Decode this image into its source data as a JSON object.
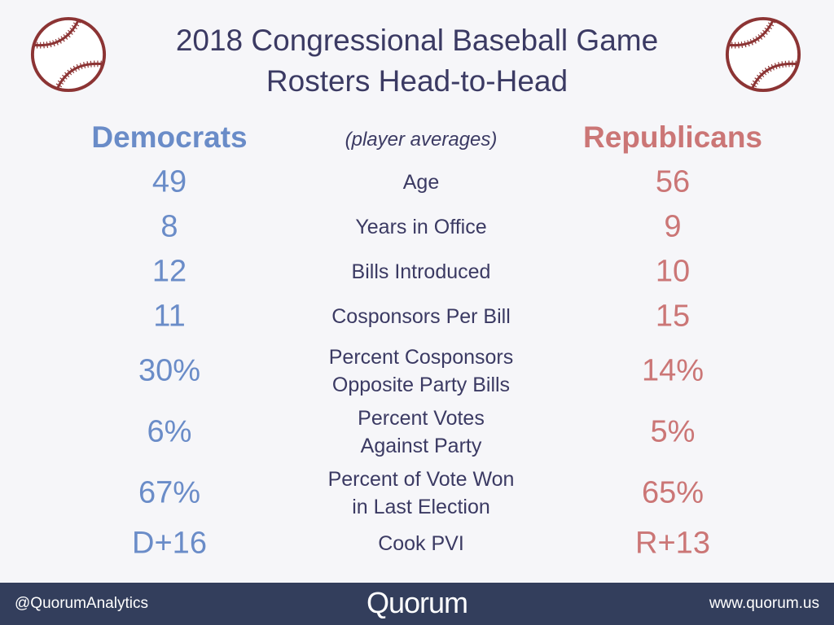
{
  "title": {
    "line1": "2018 Congressional Baseball Game",
    "line2": "Rosters Head-to-Head"
  },
  "icons": {
    "left": "baseball-icon",
    "right": "baseball-icon"
  },
  "colors": {
    "democrats": "#6a8cc8",
    "republicans": "#cb7676",
    "title": "#3b3a63",
    "footer": "#333e5c"
  },
  "headers": {
    "democrats": "Democrats",
    "subtitle": "(player averages)",
    "republicans": "Republicans"
  },
  "rows": [
    {
      "dem": "49",
      "label1": "Age",
      "label2": "",
      "rep": "56"
    },
    {
      "dem": "8",
      "label1": "Years in Office",
      "label2": "",
      "rep": "9"
    },
    {
      "dem": "12",
      "label1": "Bills Introduced",
      "label2": "",
      "rep": "10"
    },
    {
      "dem": "11",
      "label1": "Cosponsors Per Bill",
      "label2": "",
      "rep": "15"
    },
    {
      "dem": "30%",
      "label1": "Percent Cosponsors",
      "label2": "Opposite Party Bills",
      "rep": "14%"
    },
    {
      "dem": "6%",
      "label1": "Percent Votes",
      "label2": "Against Party",
      "rep": "5%"
    },
    {
      "dem": "67%",
      "label1": "Percent of Vote Won",
      "label2": "in Last Election",
      "rep": "65%"
    },
    {
      "dem": "D+16",
      "label1": "Cook PVI",
      "label2": "",
      "rep": "R+13"
    }
  ],
  "footer": {
    "handle": "@QuorumAnalytics",
    "logo": "Quorum",
    "url": "www.quorum.us"
  }
}
